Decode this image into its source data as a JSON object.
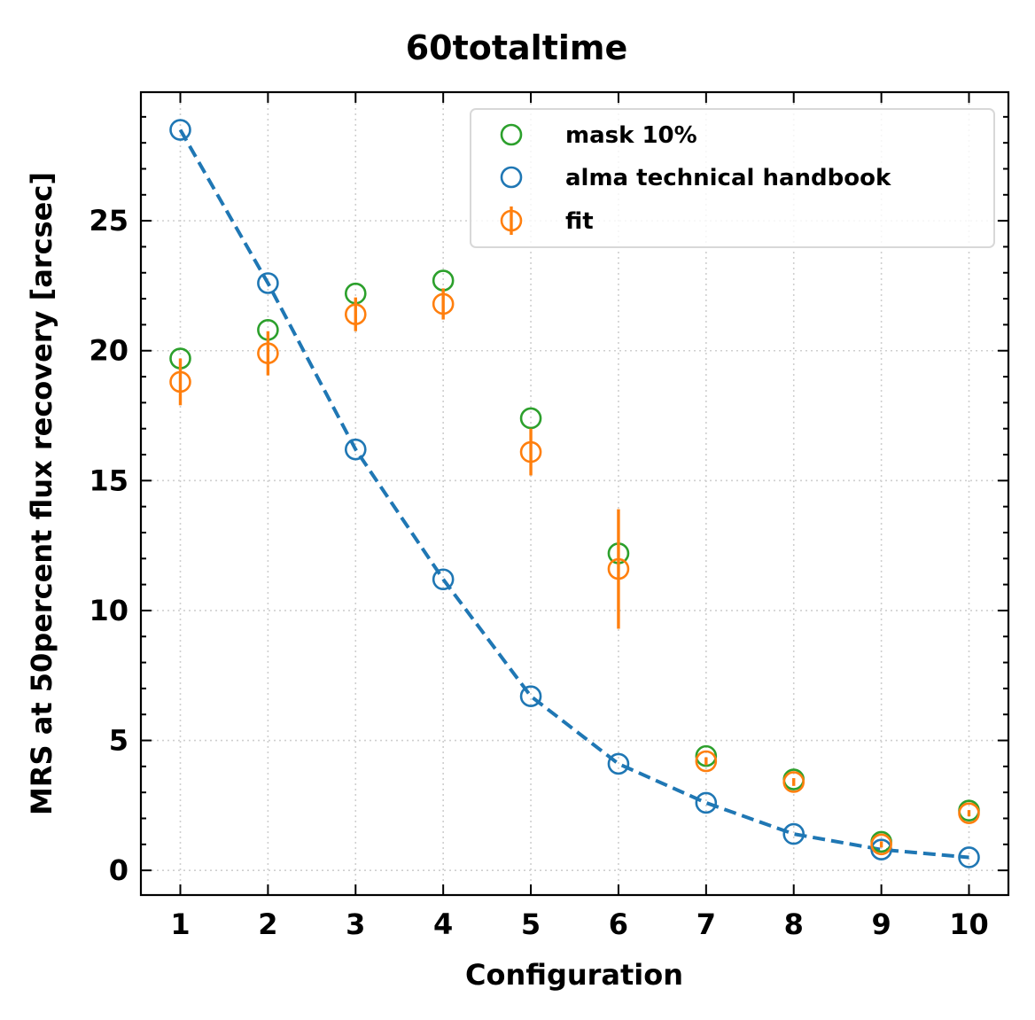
{
  "chart_data": {
    "type": "scatter",
    "title": "60totaltime",
    "xlabel": "Configuration",
    "ylabel": "MRS at 50percent flux recovery [arcsec]",
    "xlim": [
      0.55,
      10.45
    ],
    "ylim": [
      -0.95,
      29.95
    ],
    "x_ticks": [
      1,
      2,
      3,
      4,
      5,
      6,
      7,
      8,
      9,
      10
    ],
    "y_ticks": [
      0,
      5,
      10,
      15,
      20,
      25
    ],
    "grid": true,
    "legend_position": "top-right",
    "series": [
      {
        "name": "mask 10%",
        "kind": "open-circle",
        "color": "#2ca02c",
        "x": [
          1,
          2,
          3,
          4,
          5,
          6,
          7,
          8,
          9,
          10
        ],
        "y": [
          19.7,
          20.8,
          22.2,
          22.7,
          17.4,
          12.2,
          4.4,
          3.5,
          1.1,
          2.3
        ]
      },
      {
        "name": "alma technical handbook",
        "kind": "open-circle-dashed-line",
        "color": "#1f77b4",
        "x": [
          1,
          2,
          3,
          4,
          5,
          6,
          7,
          8,
          9,
          10
        ],
        "y": [
          28.5,
          22.6,
          16.2,
          11.2,
          6.7,
          4.1,
          2.6,
          1.4,
          0.8,
          0.5
        ]
      },
      {
        "name": "fit",
        "kind": "open-circle-errorbar",
        "color": "#ff7f0e",
        "x": [
          1,
          2,
          3,
          4,
          5,
          6,
          7,
          8,
          9,
          10
        ],
        "y": [
          18.8,
          19.9,
          21.4,
          21.8,
          16.1,
          11.6,
          4.2,
          3.4,
          1.0,
          2.2
        ],
        "yerr": [
          0.9,
          0.85,
          0.65,
          0.6,
          0.9,
          2.3,
          0.15,
          0.15,
          0.12,
          0.12
        ]
      }
    ]
  }
}
